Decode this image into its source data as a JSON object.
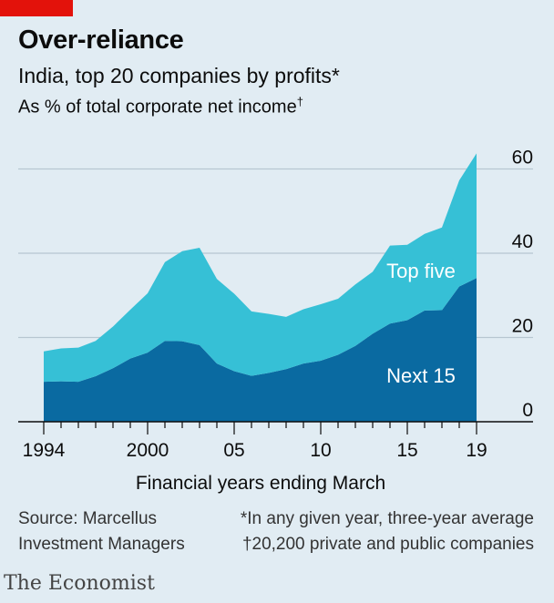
{
  "header": {
    "title": "Over-reliance",
    "subtitle": "India, top 20 companies by profits*",
    "subtitle2": "As % of total corporate net income",
    "subtitle2_mark": "†"
  },
  "footer": {
    "source_line1": "Source: Marcellus",
    "source_line2": "Investment Managers",
    "note1": "*In any given year, three-year average",
    "note2": "†20,200 private and public companies"
  },
  "brand": "The Economist",
  "colors": {
    "background": "#e1ecf3",
    "top_five": "#36c0d6",
    "next_15": "#0a6aa1",
    "accent": "#e3120b"
  },
  "chart_data": {
    "type": "area",
    "stacked": true,
    "xlabel": "Financial years ending March",
    "x": [
      1994,
      1995,
      1996,
      1997,
      1998,
      1999,
      2000,
      2001,
      2002,
      2003,
      2004,
      2005,
      2006,
      2007,
      2008,
      2009,
      2010,
      2011,
      2012,
      2013,
      2014,
      2015,
      2016,
      2017,
      2018,
      2019
    ],
    "x_ticks": [
      1994,
      2000,
      2005,
      2010,
      2015,
      2019
    ],
    "x_tick_labels": [
      "1994",
      "2000",
      "05",
      "10",
      "15",
      "19"
    ],
    "ylim": [
      0,
      64
    ],
    "y_ticks": [
      0,
      20,
      40,
      60
    ],
    "y_tick_labels": [
      "0",
      "20",
      "40",
      "60"
    ],
    "y_axis_side": "right",
    "grid": true,
    "series": [
      {
        "name": "Next 15",
        "color": "#0a6aa1",
        "values": [
          9.5,
          9.6,
          9.5,
          10.8,
          12.7,
          15.0,
          16.4,
          19.2,
          19.1,
          18.2,
          13.8,
          12.0,
          10.9,
          11.6,
          12.5,
          13.8,
          14.5,
          15.9,
          18.0,
          20.9,
          23.3,
          24.1,
          26.4,
          26.5,
          32.1,
          34.1
        ]
      },
      {
        "name": "Top five",
        "color": "#36c0d6",
        "values": [
          7.2,
          7.8,
          8.1,
          8.4,
          9.9,
          11.6,
          14.1,
          18.7,
          21.4,
          23.1,
          20.1,
          18.4,
          15.3,
          14.0,
          12.4,
          12.9,
          13.4,
          13.3,
          14.6,
          14.7,
          18.5,
          17.9,
          18.2,
          19.6,
          25.2,
          29.6
        ]
      }
    ]
  }
}
